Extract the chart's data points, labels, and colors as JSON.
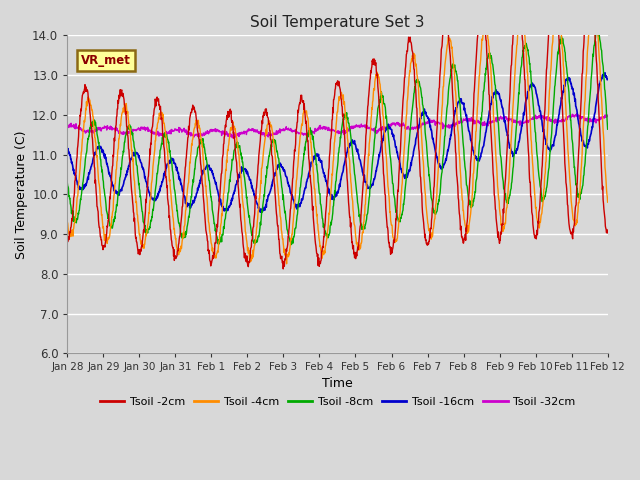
{
  "title": "Soil Temperature Set 3",
  "xlabel": "Time",
  "ylabel": "Soil Temperature (C)",
  "ylim": [
    6.0,
    14.0
  ],
  "yticks": [
    6.0,
    7.0,
    8.0,
    9.0,
    10.0,
    11.0,
    12.0,
    13.0,
    14.0
  ],
  "xtick_labels": [
    "Jan 28",
    "Jan 29",
    "Jan 30",
    "Jan 31",
    "Feb 1",
    "Feb 2",
    "Feb 3",
    "Feb 4",
    "Feb 5",
    "Feb 6",
    "Feb 7",
    "Feb 8",
    "Feb 9",
    "Feb 10",
    "Feb 11",
    "Feb 12"
  ],
  "background_color": "#d8d8d8",
  "plot_bg_color": "#d8d8d8",
  "grid_color": "#ffffff",
  "label_box_text": "VR_met",
  "label_box_bg": "#ffff99",
  "label_box_edge": "#8b6914",
  "series": {
    "Tsoil -2cm": {
      "color": "#cc0000",
      "lw": 1.0
    },
    "Tsoil -4cm": {
      "color": "#ff8c00",
      "lw": 1.0
    },
    "Tsoil -8cm": {
      "color": "#00aa00",
      "lw": 1.0
    },
    "Tsoil -16cm": {
      "color": "#0000cc",
      "lw": 1.2
    },
    "Tsoil -32cm": {
      "color": "#cc00cc",
      "lw": 1.0
    }
  }
}
